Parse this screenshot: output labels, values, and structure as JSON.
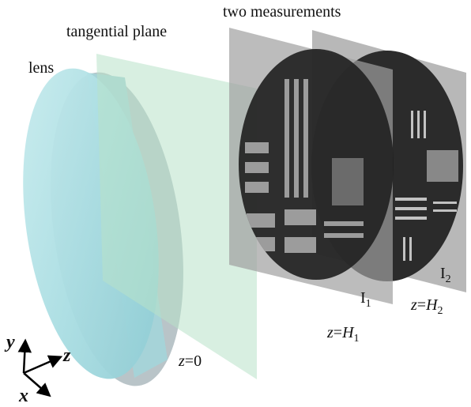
{
  "labels": {
    "lens": "lens",
    "tangential_plane": "tangential plane",
    "two_measurements": "two measurements",
    "plane_z0": {
      "var": "z",
      "rest": "=0"
    },
    "measurement_1": {
      "base": "I",
      "sub": "1"
    },
    "measurement_2": {
      "base": "I",
      "sub": "2"
    },
    "position_1": {
      "var": "z",
      "op": "=",
      "rhs": "H",
      "sub": "1"
    },
    "position_2": {
      "var": "z",
      "op": "=",
      "rhs": "H",
      "sub": "2"
    }
  },
  "axes": {
    "y": "y",
    "z": "z",
    "x": "x"
  }
}
